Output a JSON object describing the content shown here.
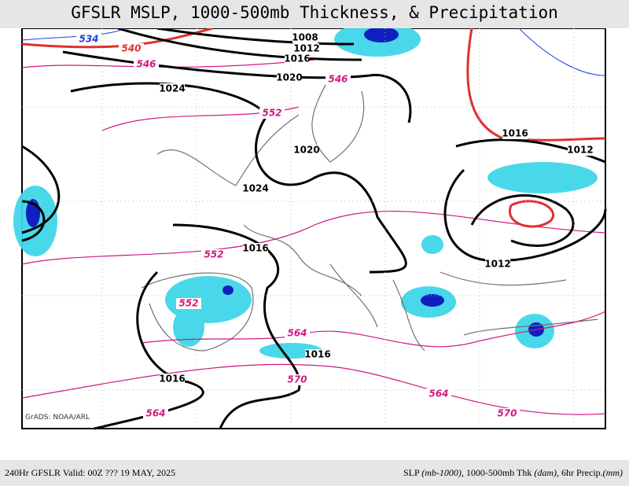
{
  "header": {
    "title": "GFSLR MSLP, 1000-500mb Thickness, & Precipitation"
  },
  "map": {
    "credit": "GrADS: NOAA/ARL",
    "contour_labels": [
      {
        "text": "534",
        "color": "#2040e0"
      },
      {
        "text": "540",
        "color": "#e03030"
      },
      {
        "text": "546",
        "color": "#d01880"
      },
      {
        "text": "1008",
        "color": "#000000"
      },
      {
        "text": "1012",
        "color": "#000000"
      },
      {
        "text": "1016",
        "color": "#000000"
      },
      {
        "text": "1020",
        "color": "#000000"
      },
      {
        "text": "546",
        "color": "#d01880"
      },
      {
        "text": "1024",
        "color": "#000000"
      },
      {
        "text": "552",
        "color": "#d01880"
      },
      {
        "text": "1020",
        "color": "#000000"
      },
      {
        "text": "1024",
        "color": "#000000"
      },
      {
        "text": "1016",
        "color": "#000000"
      },
      {
        "text": "1012",
        "color": "#000000"
      },
      {
        "text": "552",
        "color": "#d01880"
      },
      {
        "text": "1016",
        "color": "#000000"
      },
      {
        "text": "1012",
        "color": "#000000"
      },
      {
        "text": "552",
        "color": "#d01880"
      },
      {
        "text": "564",
        "color": "#d01880"
      },
      {
        "text": "1016",
        "color": "#000000"
      },
      {
        "text": "1016",
        "color": "#000000"
      },
      {
        "text": "570",
        "color": "#d01880"
      },
      {
        "text": "564",
        "color": "#d01880"
      },
      {
        "text": "564",
        "color": "#d01880"
      },
      {
        "text": "570",
        "color": "#d01880"
      }
    ]
  },
  "footer": {
    "left": "240Hr GFSLR Valid: 00Z ??? 19 MAY, 2025",
    "right": [
      "SLP ",
      "(mb-1000)",
      ", 1000-500mb Thk ",
      "(dam)",
      ", 6hr Precip.",
      "(mm)"
    ]
  }
}
